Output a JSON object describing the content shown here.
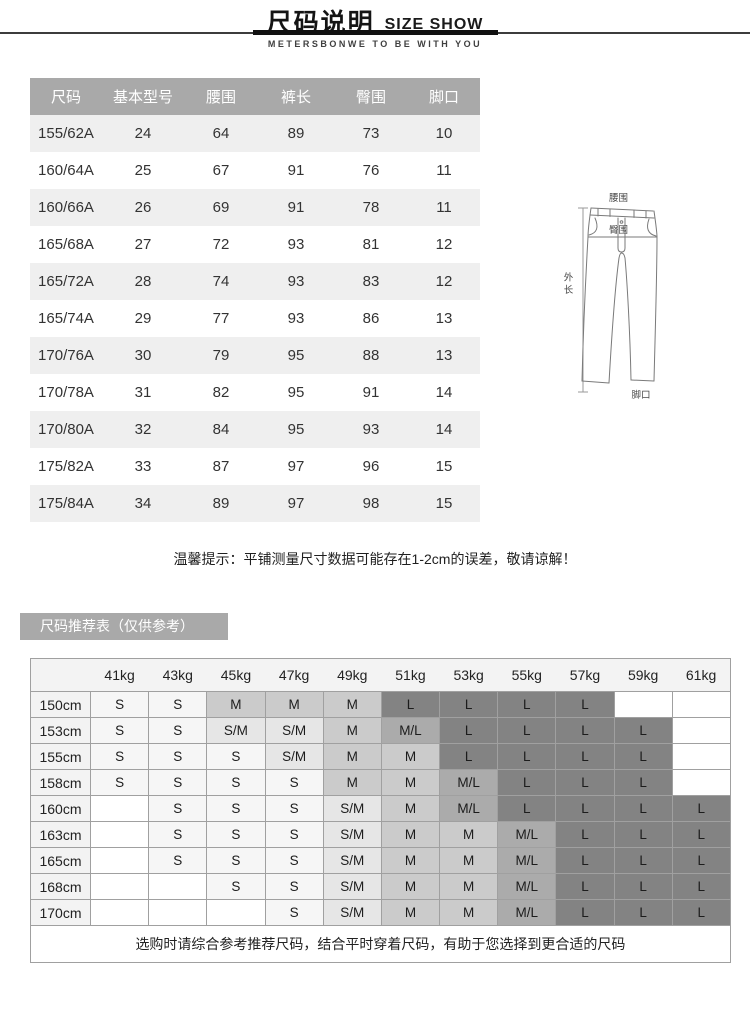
{
  "header": {
    "title_cn": "尺码说明",
    "title_en": "SIZE SHOW",
    "brand_line": "METERSBONWE TO BE WITH YOU"
  },
  "size_table": {
    "columns": [
      "尺码",
      "基本型号",
      "腰围",
      "裤长",
      "臀围",
      "脚口"
    ],
    "rows": [
      [
        "155/62A",
        "24",
        "64",
        "89",
        "73",
        "10"
      ],
      [
        "160/64A",
        "25",
        "67",
        "91",
        "76",
        "11"
      ],
      [
        "160/66A",
        "26",
        "69",
        "91",
        "78",
        "11"
      ],
      [
        "165/68A",
        "27",
        "72",
        "93",
        "81",
        "12"
      ],
      [
        "165/72A",
        "28",
        "74",
        "93",
        "83",
        "12"
      ],
      [
        "165/74A",
        "29",
        "77",
        "93",
        "86",
        "13"
      ],
      [
        "170/76A",
        "30",
        "79",
        "95",
        "88",
        "13"
      ],
      [
        "170/78A",
        "31",
        "82",
        "95",
        "91",
        "14"
      ],
      [
        "170/80A",
        "32",
        "84",
        "95",
        "93",
        "14"
      ],
      [
        "175/82A",
        "33",
        "87",
        "97",
        "96",
        "15"
      ],
      [
        "175/84A",
        "34",
        "89",
        "97",
        "98",
        "15"
      ]
    ]
  },
  "diagram": {
    "waist_label": "腰围",
    "hip_label": "臀围",
    "outseam_label": "外长",
    "leg_opening_label": "脚口"
  },
  "tip": "温馨提示：平铺测量尺寸数据可能存在1-2cm的误差，敬请谅解！",
  "recommendation": {
    "section_title": "尺码推荐表（仅供参考）",
    "weight_headers": [
      "41kg",
      "43kg",
      "45kg",
      "47kg",
      "49kg",
      "51kg",
      "53kg",
      "55kg",
      "57kg",
      "59kg",
      "61kg"
    ],
    "height_rows": [
      {
        "height": "150cm",
        "cells": [
          "S",
          "S",
          "M",
          "M",
          "M",
          "L",
          "L",
          "L",
          "L",
          "",
          ""
        ]
      },
      {
        "height": "153cm",
        "cells": [
          "S",
          "S",
          "S/M",
          "S/M",
          "M",
          "M/L",
          "L",
          "L",
          "L",
          "L",
          ""
        ]
      },
      {
        "height": "155cm",
        "cells": [
          "S",
          "S",
          "S",
          "S/M",
          "M",
          "M",
          "L",
          "L",
          "L",
          "L",
          ""
        ]
      },
      {
        "height": "158cm",
        "cells": [
          "S",
          "S",
          "S",
          "S",
          "M",
          "M",
          "M/L",
          "L",
          "L",
          "L",
          ""
        ]
      },
      {
        "height": "160cm",
        "cells": [
          "",
          "S",
          "S",
          "S",
          "S/M",
          "M",
          "M/L",
          "L",
          "L",
          "L",
          "L"
        ]
      },
      {
        "height": "163cm",
        "cells": [
          "",
          "S",
          "S",
          "S",
          "S/M",
          "M",
          "M",
          "M/L",
          "L",
          "L",
          "L"
        ]
      },
      {
        "height": "165cm",
        "cells": [
          "",
          "S",
          "S",
          "S",
          "S/M",
          "M",
          "M",
          "M/L",
          "L",
          "L",
          "L"
        ]
      },
      {
        "height": "168cm",
        "cells": [
          "",
          "",
          "S",
          "S",
          "S/M",
          "M",
          "M",
          "M/L",
          "L",
          "L",
          "L"
        ]
      },
      {
        "height": "170cm",
        "cells": [
          "",
          "",
          "",
          "S",
          "S/M",
          "M",
          "M",
          "M/L",
          "L",
          "L",
          "L"
        ]
      }
    ],
    "footer_note": "选购时请综合参考推荐尺码，结合平时穿着尺码，有助于您选择到更合适的尺码"
  },
  "colors": {
    "accent_gray": "#a9a9a9",
    "row_alt": "#efefef",
    "grid_border": "#a0a0a0",
    "cell_s": "#f6f6f6",
    "cell_sm": "#e6e6e6",
    "cell_m": "#cbcbcb",
    "cell_ml": "#ababab",
    "cell_l": "#838383",
    "cell_blank": "#ffffff"
  }
}
